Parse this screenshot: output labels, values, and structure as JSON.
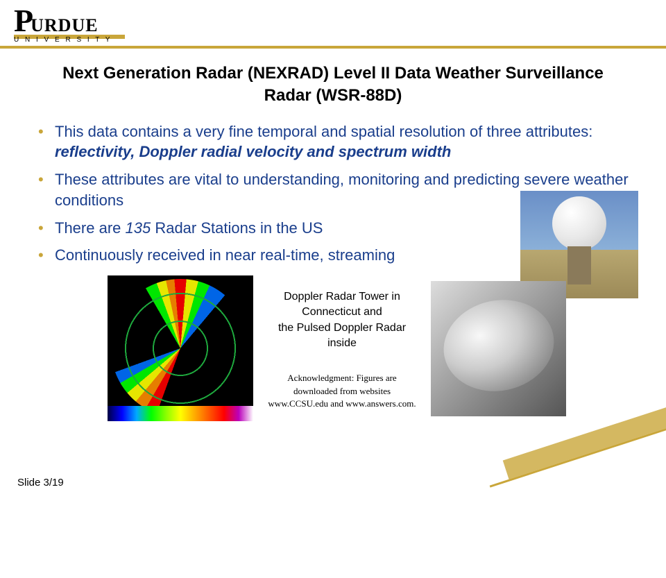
{
  "logo": {
    "p": "P",
    "rest": "URDUE",
    "sub": "U N I V E R S I T Y"
  },
  "title": "Next Generation Radar (NEXRAD) Level II Data  Weather Surveillance Radar (WSR-88D)",
  "bullets": {
    "b1_pre": "This data contains a very fine temporal and spatial resolution of three attributes: ",
    "b1_emph": "reflectivity, Doppler radial velocity and spectrum width",
    "b2": "These attributes are vital to understanding, monitoring and predicting severe weather conditions",
    "b3_pre": "There are ",
    "b3_num": "135 ",
    "b3_post": " Radar Stations in the US",
    "b4": "Continuously received in near real-time, streaming"
  },
  "caption": {
    "line1": "Doppler Radar Tower in Connecticut and",
    "line2": "the Pulsed Doppler Radar inside"
  },
  "acknowledgment": "Acknowledgment: Figures are downloaded from websites www.CCSU.edu and www.answers.com.",
  "footer": "Slide 3/19",
  "colors": {
    "accent": "#c9a63a",
    "bullet_text": "#1a3e8c",
    "background": "#ffffff",
    "title_color": "#000000"
  }
}
